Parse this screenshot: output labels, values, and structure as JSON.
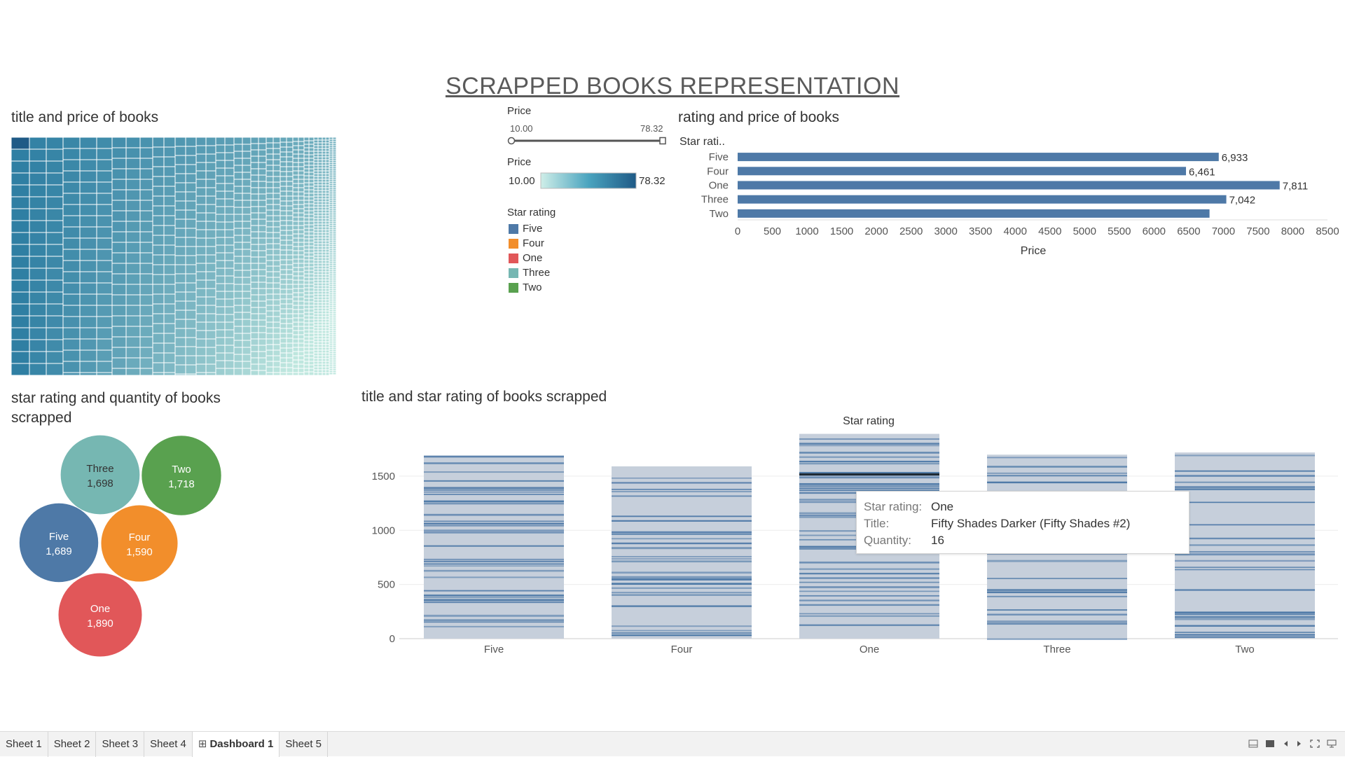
{
  "dashboard": {
    "title": "SCRAPPED BOOKS REPRESENTATION"
  },
  "treemap": {
    "title": "title and price of books",
    "colors": {
      "dark": "#2a6f97",
      "light": "#c8ece6",
      "accent": "#1f5a86"
    }
  },
  "legends": {
    "price_filter": {
      "label": "Price",
      "min": "10.00",
      "max": "78.32"
    },
    "price_color": {
      "label": "Price",
      "min": "10.00",
      "max": "78.32"
    },
    "star_rating": {
      "label": "Star rating",
      "items": [
        {
          "label": "Five",
          "color": "#4e79a7"
        },
        {
          "label": "Four",
          "color": "#f28e2b"
        },
        {
          "label": "One",
          "color": "#e15759"
        },
        {
          "label": "Three",
          "color": "#76b7b2"
        },
        {
          "label": "Two",
          "color": "#59a14f"
        }
      ]
    }
  },
  "hbar": {
    "title": "rating and price of books",
    "axis_header": "Star rati..",
    "x_axis_label": "Price",
    "ticks": [
      "0",
      "500",
      "1000",
      "1500",
      "2000",
      "2500",
      "3000",
      "3500",
      "4000",
      "4500",
      "5000",
      "5500",
      "6000",
      "6500",
      "7000",
      "7500",
      "8000",
      "8500"
    ]
  },
  "bubble": {
    "title": "star rating and quantity of books scrapped"
  },
  "vbar": {
    "title": "title and star rating of books scrapped",
    "column_header": "Star rating",
    "y_ticks": [
      "0",
      "500",
      "1000",
      "1500"
    ]
  },
  "tooltip": {
    "k1": "Star rating:",
    "v1": "One",
    "k2": "Title:",
    "v2": "Fifty Shades Darker (Fifty Shades #2)",
    "k3": "Quantity:",
    "v3": "16"
  },
  "tabs": {
    "sheet1": "Sheet 1",
    "sheet2": "Sheet 2",
    "sheet3": "Sheet 3",
    "sheet4": "Sheet 4",
    "dashboard1": "Dashboard 1",
    "sheet5": "Sheet 5",
    "dashboard_icon": "⊞"
  },
  "chart_data": [
    {
      "type": "bar",
      "orientation": "horizontal",
      "title": "rating and price of books",
      "xlabel": "Price",
      "ylabel": "Star rati..",
      "categories": [
        "Five",
        "Four",
        "One",
        "Three",
        "Two"
      ],
      "values": [
        6933,
        6461,
        7811,
        7042,
        6800
      ],
      "value_labels": [
        "6,933",
        "6,461",
        "7,811",
        "7,042",
        ""
      ],
      "xlim": [
        0,
        8500
      ],
      "color": "#4e79a7"
    },
    {
      "type": "scatter",
      "subtype": "packed-bubbles",
      "title": "star rating and quantity of books scrapped",
      "categories": [
        "Three",
        "Two",
        "Five",
        "Four",
        "One"
      ],
      "values": [
        1698,
        1718,
        1689,
        1590,
        1890
      ],
      "value_labels": [
        "1,698",
        "1,718",
        "1,689",
        "1,590",
        "1,890"
      ],
      "colors": [
        "#76b7b2",
        "#59a14f",
        "#4e79a7",
        "#f28e2b",
        "#e15759"
      ]
    },
    {
      "type": "bar",
      "subtype": "stacked",
      "title": "title and star rating of books scrapped",
      "xlabel": "Star rating",
      "ylabel": "",
      "categories": [
        "Five",
        "Four",
        "One",
        "Three",
        "Two"
      ],
      "values": [
        1689,
        1590,
        1890,
        1698,
        1718
      ],
      "ylim": [
        0,
        1900
      ],
      "colors": {
        "light": "#c6cfdb",
        "dark": "#4e79a7",
        "highlight": "#1f2a33"
      }
    }
  ]
}
